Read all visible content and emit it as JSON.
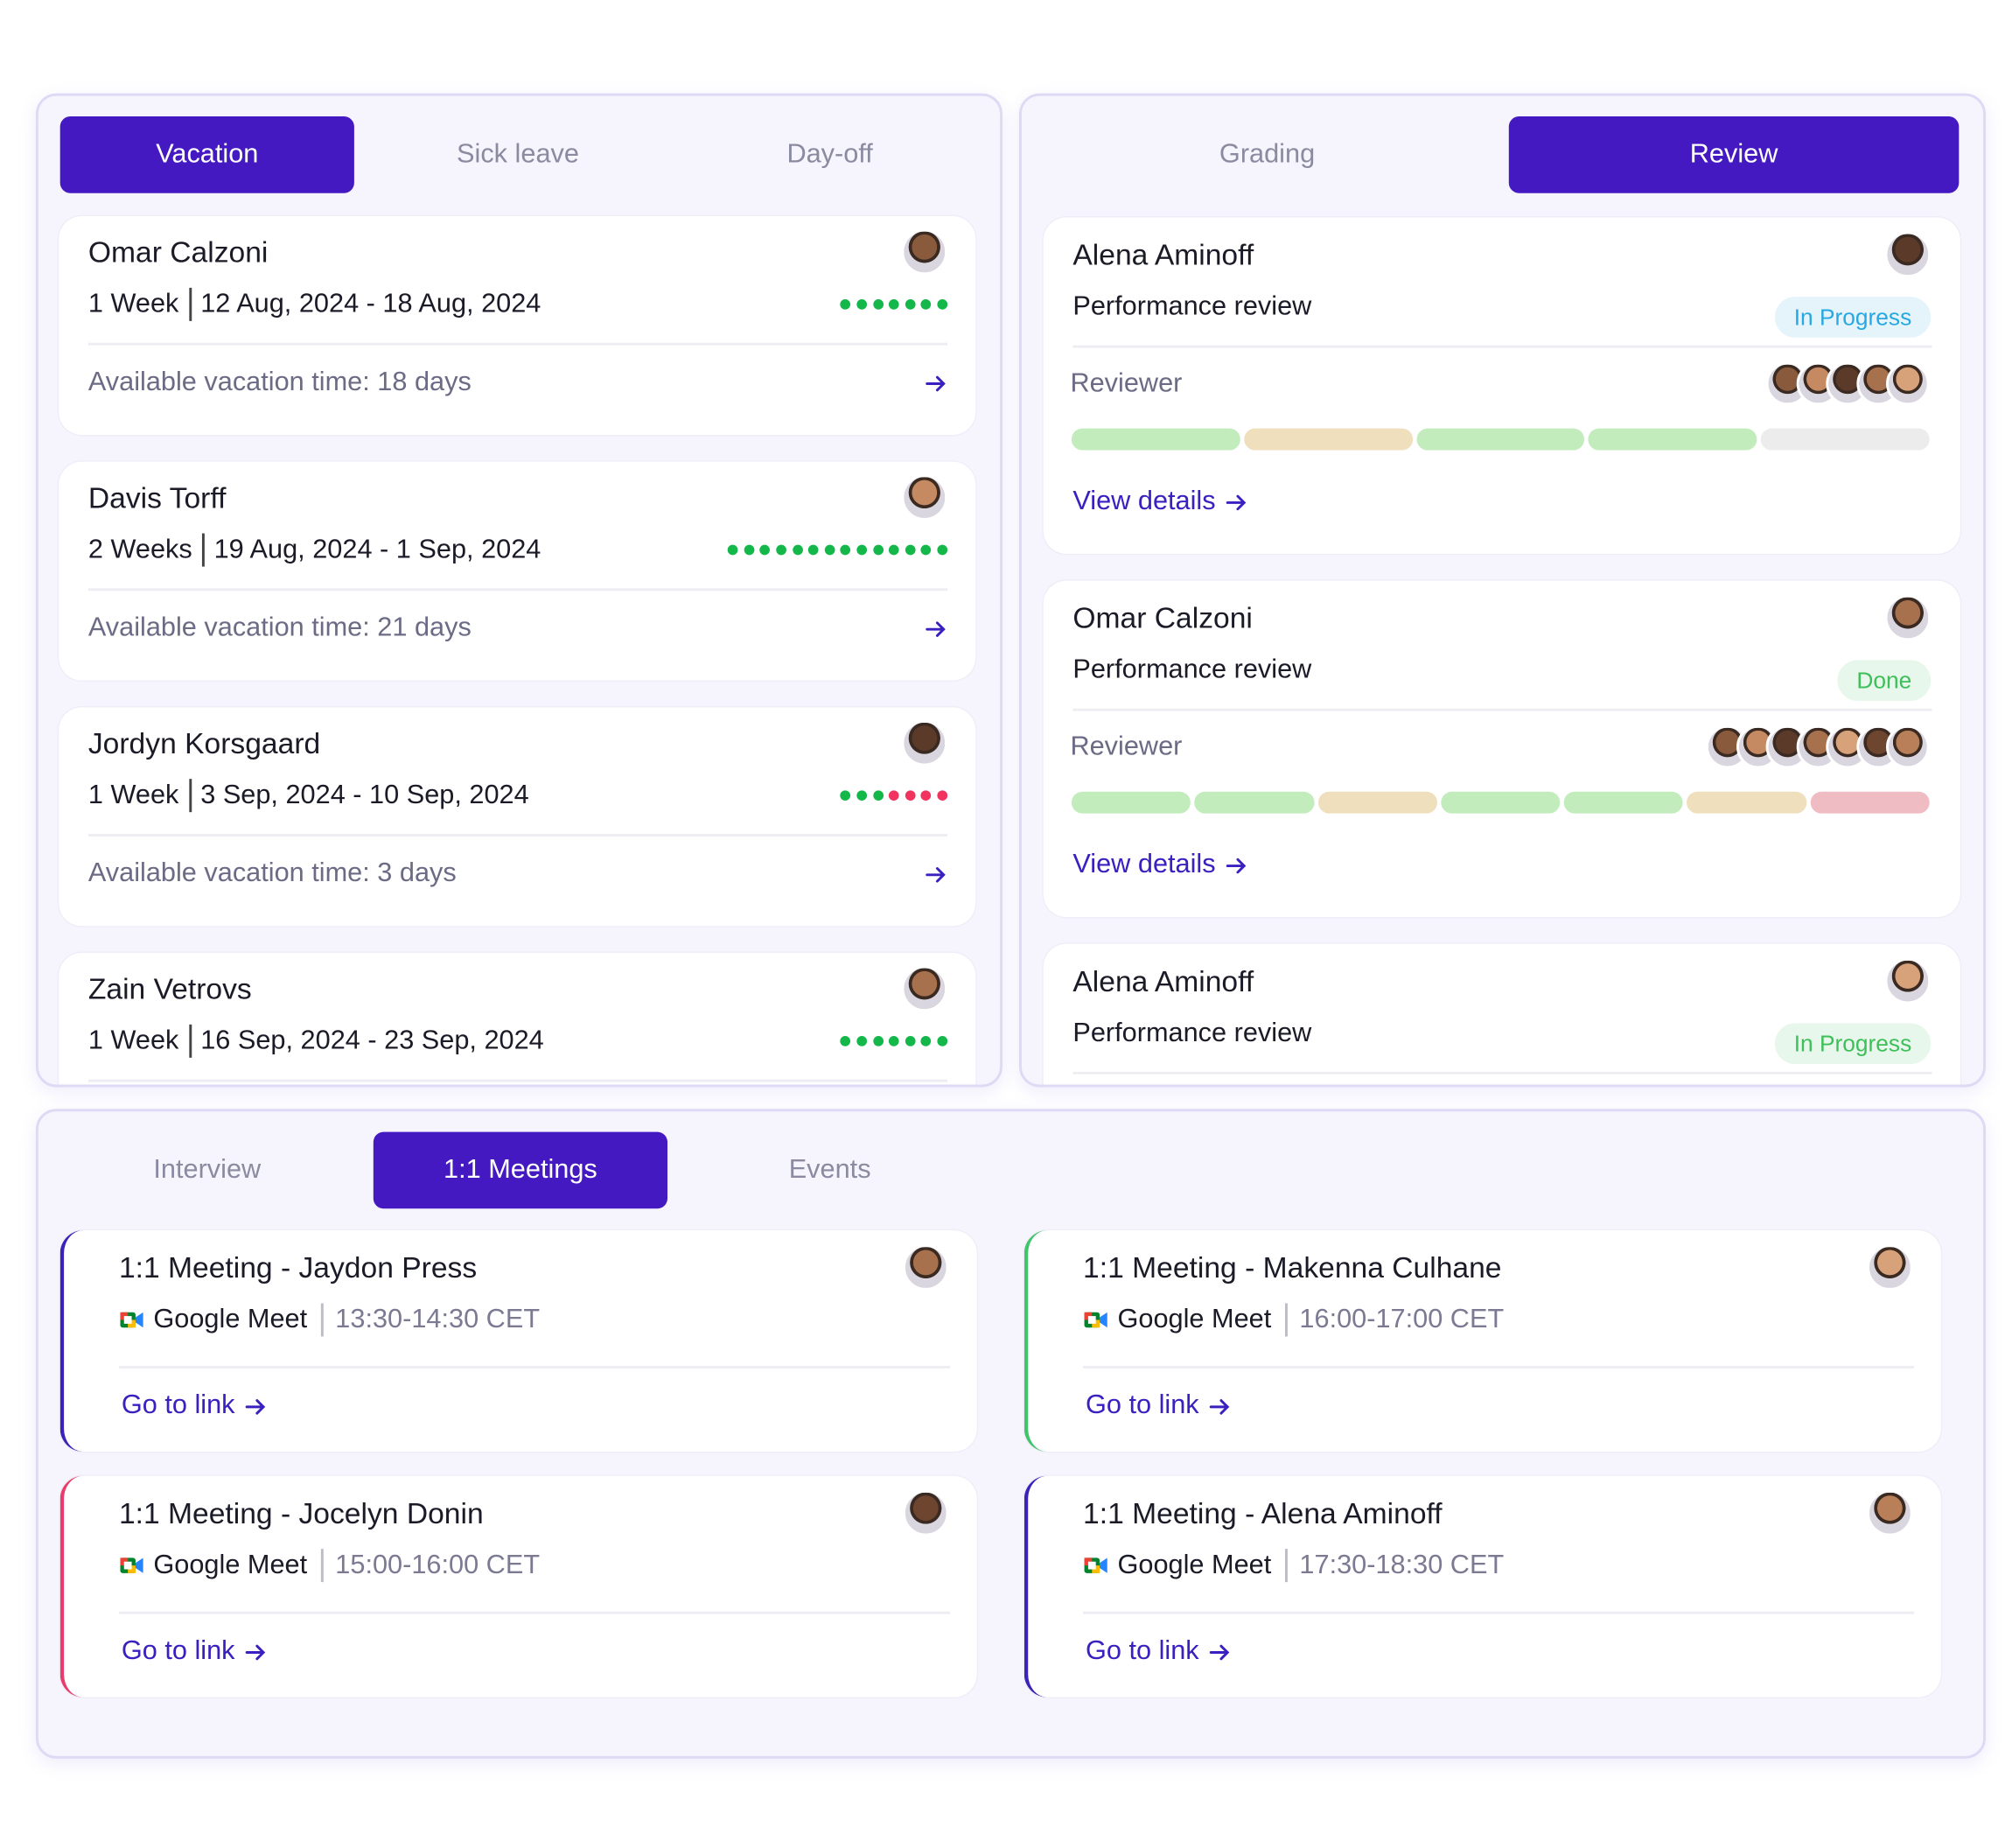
{
  "vacation": {
    "tabs": [
      "Vacation",
      "Sick leave",
      "Day-off"
    ],
    "active_tab": 0,
    "cards": [
      {
        "name": "Omar Calzoni",
        "duration": "1 Week",
        "dates": "12 Aug, 2024 - 18 Aug, 2024",
        "available": "Available vacation time: 18 days",
        "dots_green": 7,
        "dots_red": 0
      },
      {
        "name": "Davis Torff",
        "duration": "2 Weeks",
        "dates": "19 Aug, 2024 - 1 Sep, 2024",
        "available": "Available vacation time: 21 days",
        "dots_green": 14,
        "dots_red": 0
      },
      {
        "name": "Jordyn Korsgaard",
        "duration": "1 Week",
        "dates": "3 Sep, 2024 - 10 Sep, 2024",
        "available": "Available vacation time: 3 days",
        "dots_green": 3,
        "dots_red": 4
      },
      {
        "name": "Zain Vetrovs",
        "duration": "1 Week",
        "dates": "16 Sep, 2024 - 23 Sep, 2024",
        "dots_green": 7,
        "dots_red": 0
      }
    ]
  },
  "review": {
    "tabs": [
      "Grading",
      "Review"
    ],
    "active_tab": 1,
    "cards": [
      {
        "name": "Alena Aminoff",
        "subtitle": "Performance review",
        "status": "In Progress",
        "status_color": "#27a8e0",
        "reviewer_label": "Reviewer",
        "reviewers": 5,
        "progress": [
          "#c3ecbd",
          "#efdfbd",
          "#c3ecbd",
          "#c3ecbd",
          "#ececec"
        ],
        "link": "View details"
      },
      {
        "name": "Omar Calzoni",
        "subtitle": "Performance review",
        "status": "Done",
        "status_color": "#3fbf5a",
        "reviewer_label": "Reviewer",
        "reviewers": 7,
        "progress": [
          "#c3ecbd",
          "#c3ecbd",
          "#efdfbd",
          "#c3ecbd",
          "#c3ecbd",
          "#efdfbd",
          "#f0bcc3"
        ],
        "link": "View details"
      },
      {
        "name": "Alena Aminoff",
        "subtitle": "Performance review",
        "status": "In Progress",
        "status_color": "#3fbf5a"
      }
    ]
  },
  "meetings": {
    "tabs": [
      "Interview",
      "1:1 Meetings",
      "Events"
    ],
    "active_tab": 1,
    "cards": [
      {
        "title": "1:1 Meeting - Jaydon Press",
        "platform": "Google Meet",
        "time": "13:30-14:30 CET",
        "link": "Go to link",
        "accent": "#3b22b8"
      },
      {
        "title": "1:1 Meeting - Makenna Culhane",
        "platform": "Google Meet",
        "time": "16:00-17:00 CET",
        "link": "Go to link",
        "accent": "#3fc56a"
      },
      {
        "title": "1:1 Meeting - Jocelyn Donin",
        "platform": "Google Meet",
        "time": "15:00-16:00 CET",
        "link": "Go to link",
        "accent": "#ea3c6a"
      },
      {
        "title": "1:1 Meeting - Alena Aminoff",
        "platform": "Google Meet",
        "time": "17:30-18:30 CET",
        "link": "Go to link",
        "accent": "#3b22b8"
      }
    ]
  }
}
